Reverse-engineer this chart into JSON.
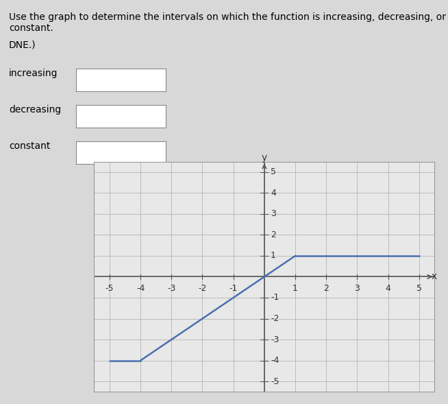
{
  "labels": [
    "increasing",
    "decreasing",
    "constant"
  ],
  "xlim": [
    -5.5,
    5.5
  ],
  "ylim": [
    -5.5,
    5.5
  ],
  "xticks": [
    -5,
    -4,
    -3,
    -2,
    -1,
    1,
    2,
    3,
    4,
    5
  ],
  "yticks": [
    -5,
    -4,
    -3,
    -2,
    -1,
    1,
    2,
    3,
    4,
    5
  ],
  "xlabel": "x",
  "ylabel": "y",
  "line_color": "#4B6FAE",
  "line_width": 1.8,
  "segments": [
    {
      "x": [
        -5,
        -4
      ],
      "y": [
        -4,
        -4
      ]
    },
    {
      "x": [
        -4,
        1
      ],
      "y": [
        -4,
        1
      ]
    },
    {
      "x": [
        1,
        5
      ],
      "y": [
        1,
        1
      ]
    }
  ],
  "page_bg": "#D8D8D8",
  "graph_bg": "#E8E8E8",
  "grid_color": "#BBBBBB",
  "font_size_text": 10,
  "font_size_axis": 9,
  "title_line1": "Use the graph to determine the intervals on which the function is increasing, decreasing, or constant.",
  "title_line2": "DNE.)"
}
